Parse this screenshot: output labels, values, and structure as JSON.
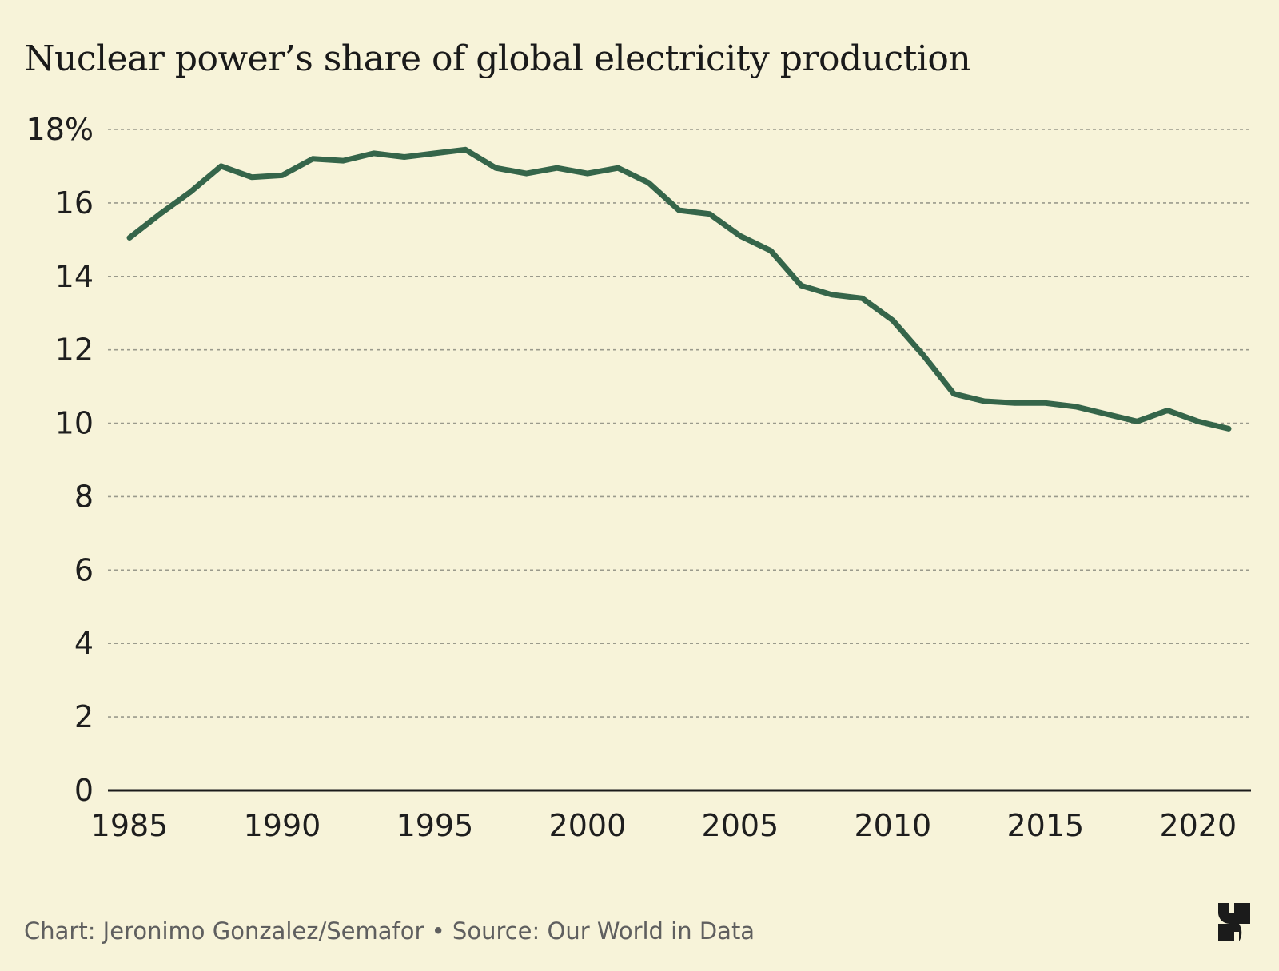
{
  "header": {
    "title": "Nuclear power’s share of global electricity production"
  },
  "footer": {
    "credit": "Chart: Jeronimo Gonzalez/Semafor • Source: Our World in Data"
  },
  "logo": {
    "icon": "semafor-logo-icon"
  },
  "colors": {
    "background": "#f7f3d9",
    "line": "#35654a",
    "grid": "#9a9a8c",
    "axis": "#1a1a1a"
  },
  "chart_data": {
    "type": "line",
    "title": "Nuclear power’s share of global electricity production",
    "xlabel": "",
    "ylabel": "",
    "xlim": [
      1985,
      2021
    ],
    "ylim": [
      0,
      18
    ],
    "grid": true,
    "legend": "none",
    "y_ticks": [
      0,
      2,
      4,
      6,
      8,
      10,
      12,
      14,
      16,
      18
    ],
    "y_tick_labels": [
      "0",
      "2",
      "4",
      "6",
      "8",
      "10",
      "12",
      "14",
      "16",
      "18%"
    ],
    "x_ticks": [
      1985,
      1990,
      1995,
      2000,
      2005,
      2010,
      2015,
      2020
    ],
    "x_tick_labels": [
      "1985",
      "1990",
      "1995",
      "2000",
      "2005",
      "2010",
      "2015",
      "2020"
    ],
    "series": [
      {
        "x": [
          1985,
          1986,
          1987,
          1988,
          1989,
          1990,
          1991,
          1992,
          1993,
          1994,
          1995,
          1996,
          1997,
          1998,
          1999,
          2000,
          2001,
          2002,
          2003,
          2004,
          2005,
          2006,
          2007,
          2008,
          2009,
          2010,
          2011,
          2012,
          2013,
          2014,
          2015,
          2016,
          2017,
          2018,
          2019,
          2020,
          2021
        ],
        "values": [
          15.05,
          15.7,
          16.3,
          17.0,
          16.7,
          16.75,
          17.2,
          17.15,
          17.35,
          17.25,
          17.35,
          17.45,
          16.95,
          16.8,
          16.95,
          16.8,
          16.95,
          16.55,
          15.8,
          15.7,
          15.1,
          14.7,
          13.75,
          13.5,
          13.4,
          12.8,
          11.85,
          10.8,
          10.6,
          10.55,
          10.55,
          10.45,
          10.25,
          10.05,
          10.35,
          10.05,
          9.85
        ]
      }
    ]
  }
}
